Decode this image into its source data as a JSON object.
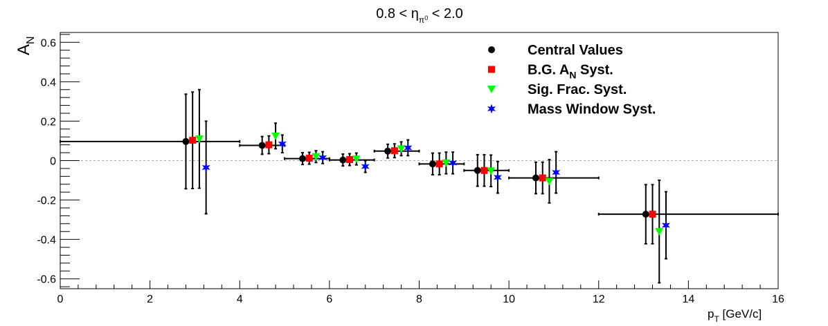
{
  "chart_data": {
    "type": "scatter",
    "title": {
      "pre": "0.8 < η",
      "sub": "π",
      "supsub": "0",
      "post": " < 2.0"
    },
    "xlabel": {
      "main": "p",
      "sub": "T",
      "post": " [GeV/c]"
    },
    "ylabel": {
      "main": "A",
      "sub": "N"
    },
    "xlim": [
      0,
      16
    ],
    "ylim": [
      -0.65,
      0.65
    ],
    "xticks": [
      0,
      2,
      4,
      6,
      8,
      10,
      12,
      14,
      16
    ],
    "xtick_labels": [
      "0",
      "2",
      "4",
      "6",
      "8",
      "10",
      "12",
      "14",
      "16"
    ],
    "yticks": [
      0.6,
      0.4,
      0.2,
      0,
      -0.2,
      -0.4,
      -0.6
    ],
    "ytick_labels": [
      "0.6",
      "0.4",
      "0.2",
      "0",
      "-0.2",
      "-0.4",
      "-0.6"
    ],
    "zero_line": true,
    "legend_position": "top-right",
    "x_bins": [
      [
        0,
        4
      ],
      [
        4,
        5
      ],
      [
        5,
        6
      ],
      [
        6,
        7
      ],
      [
        7,
        8
      ],
      [
        8,
        9
      ],
      [
        9,
        10
      ],
      [
        10,
        12
      ],
      [
        12,
        16
      ]
    ],
    "series": [
      {
        "name": "Central Values",
        "marker": "circle",
        "color": "#000000",
        "x": [
          2.8,
          4.5,
          5.4,
          6.3,
          7.3,
          8.3,
          9.3,
          10.6,
          13.05
        ],
        "y": [
          0.097,
          0.077,
          0.01,
          0.003,
          0.048,
          -0.017,
          -0.05,
          -0.088,
          -0.272
        ],
        "yerr": [
          0.24,
          0.045,
          0.03,
          0.03,
          0.035,
          0.055,
          0.08,
          0.08,
          0.15
        ],
        "xerr_bins": true
      },
      {
        "name": "B.G. A_N Syst.",
        "marker": "square",
        "color": "#ff0000",
        "x": [
          2.95,
          4.65,
          5.55,
          6.45,
          7.45,
          8.45,
          9.45,
          10.75,
          13.2
        ],
        "y": [
          0.103,
          0.08,
          0.012,
          0.005,
          0.05,
          -0.017,
          -0.05,
          -0.088,
          -0.272
        ],
        "yerr": [
          0.245,
          0.045,
          0.03,
          0.03,
          0.035,
          0.055,
          0.08,
          0.08,
          0.15
        ]
      },
      {
        "name": "Sig. Frac. Syst.",
        "marker": "triangle-down",
        "color": "#00ff00",
        "x": [
          3.1,
          4.8,
          5.7,
          6.6,
          7.6,
          8.6,
          9.6,
          10.9,
          13.35
        ],
        "y": [
          0.11,
          0.125,
          0.02,
          0.008,
          0.06,
          -0.012,
          -0.052,
          -0.105,
          -0.36
        ],
        "yerr": [
          0.25,
          0.065,
          0.03,
          0.03,
          0.035,
          0.055,
          0.08,
          0.11,
          0.26
        ]
      },
      {
        "name": "Mass Window Syst.",
        "marker": "star",
        "color": "#0000ff",
        "x": [
          3.25,
          4.95,
          5.85,
          6.8,
          7.75,
          8.75,
          9.75,
          11.05,
          13.5
        ],
        "y": [
          -0.035,
          0.085,
          0.015,
          -0.03,
          0.065,
          -0.012,
          -0.085,
          -0.06,
          -0.328
        ],
        "yerr": [
          0.235,
          0.045,
          0.03,
          0.03,
          0.04,
          0.055,
          0.08,
          0.105,
          0.17
        ]
      }
    ],
    "legend": [
      {
        "text": "Central Values"
      },
      {
        "text": "B.G. A",
        "sub": "N",
        "post": " Syst."
      },
      {
        "text": "Sig. Frac. Syst."
      },
      {
        "text": "Mass Window Syst."
      }
    ]
  }
}
